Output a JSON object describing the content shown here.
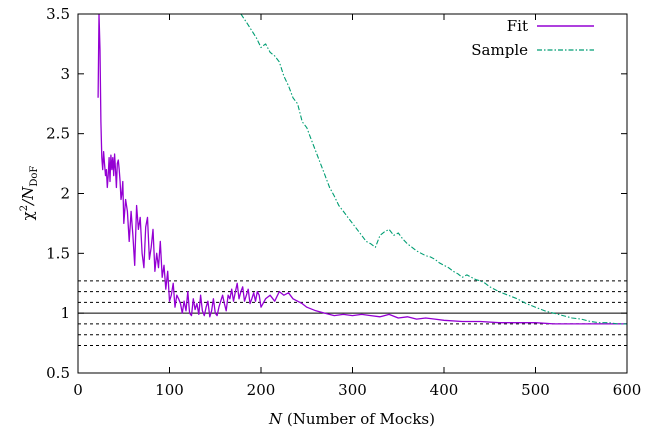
{
  "chart_data": {
    "type": "line",
    "title": "",
    "xlabel": {
      "var": "N",
      "rest": " (Number of Mocks)"
    },
    "ylabel": {
      "base": "χ",
      "sup": "2",
      "mid": "/N",
      "sub": "DoF"
    },
    "xlim": [
      0,
      600
    ],
    "ylim": [
      0.5,
      3.5
    ],
    "xticks": [
      0,
      100,
      200,
      300,
      400,
      500,
      600
    ],
    "yticks": [
      0.5,
      1,
      1.5,
      2,
      2.5,
      3,
      3.5
    ],
    "xtick_labels": [
      "0",
      "100",
      "200",
      "300",
      "400",
      "500",
      "600"
    ],
    "ytick_labels": [
      "0.5",
      "1",
      "1.5",
      "2",
      "2.5",
      "3",
      "3.5"
    ],
    "grid": false,
    "legend_position": "top-right",
    "reference_lines": {
      "solid": [
        1.0
      ],
      "dashed": [
        0.73,
        0.82,
        0.91,
        1.09,
        1.18,
        1.27
      ]
    },
    "series": [
      {
        "name": "Fit",
        "color": "#9400d3",
        "style": "solid",
        "x": [
          22,
          23,
          24,
          25,
          26,
          27,
          28,
          29,
          30,
          31,
          32,
          33,
          34,
          35,
          36,
          37,
          38,
          39,
          40,
          41,
          42,
          43,
          44,
          45,
          46,
          47,
          48,
          49,
          50,
          52,
          54,
          56,
          58,
          60,
          62,
          64,
          66,
          68,
          70,
          72,
          74,
          76,
          78,
          80,
          82,
          84,
          86,
          88,
          90,
          92,
          94,
          96,
          98,
          100,
          102,
          104,
          106,
          108,
          110,
          112,
          114,
          116,
          118,
          120,
          122,
          124,
          126,
          128,
          130,
          132,
          134,
          136,
          138,
          140,
          142,
          144,
          146,
          148,
          150,
          152,
          154,
          156,
          158,
          160,
          162,
          164,
          166,
          168,
          170,
          172,
          174,
          176,
          178,
          180,
          182,
          184,
          186,
          188,
          190,
          192,
          194,
          196,
          198,
          200,
          205,
          210,
          215,
          220,
          225,
          230,
          235,
          240,
          245,
          250,
          260,
          270,
          280,
          290,
          300,
          310,
          320,
          330,
          340,
          350,
          360,
          370,
          380,
          390,
          400,
          420,
          440,
          460,
          480,
          500,
          520,
          540,
          560,
          580,
          600
        ],
        "values": [
          2.8,
          3.5,
          3.2,
          2.6,
          2.3,
          2.2,
          2.35,
          2.25,
          2.15,
          2.2,
          2.05,
          2.15,
          2.3,
          2.1,
          2.32,
          2.2,
          2.3,
          2.15,
          2.33,
          2.2,
          2.05,
          2.25,
          2.28,
          2.2,
          2.1,
          1.95,
          2.0,
          2.1,
          1.75,
          1.95,
          1.85,
          1.6,
          1.85,
          1.65,
          1.4,
          1.9,
          1.7,
          1.8,
          1.5,
          1.38,
          1.72,
          1.8,
          1.45,
          1.55,
          1.7,
          1.35,
          1.5,
          1.38,
          1.6,
          1.3,
          1.4,
          1.2,
          1.35,
          1.1,
          1.15,
          1.25,
          1.05,
          1.15,
          1.12,
          1.08,
          1.0,
          1.1,
          1.02,
          1.18,
          1.0,
          0.98,
          1.12,
          1.03,
          1.08,
          0.99,
          1.15,
          1.02,
          0.98,
          1.05,
          1.1,
          0.97,
          1.02,
          1.12,
          1.0,
          0.98,
          1.05,
          1.1,
          1.15,
          1.08,
          1.02,
          1.15,
          1.12,
          1.2,
          1.1,
          1.18,
          1.25,
          1.12,
          1.18,
          1.22,
          1.1,
          1.15,
          1.2,
          1.08,
          1.12,
          1.17,
          1.1,
          1.18,
          1.15,
          1.05,
          1.12,
          1.15,
          1.1,
          1.18,
          1.15,
          1.17,
          1.12,
          1.1,
          1.08,
          1.05,
          1.02,
          1.0,
          0.98,
          0.99,
          0.98,
          0.99,
          0.98,
          0.97,
          0.99,
          0.96,
          0.97,
          0.95,
          0.96,
          0.95,
          0.94,
          0.93,
          0.93,
          0.92,
          0.92,
          0.92,
          0.91,
          0.91,
          0.91,
          0.91,
          0.91
        ]
      },
      {
        "name": "Sample",
        "color": "#009e73",
        "style": "dash-dot",
        "x": [
          178,
          185,
          195,
          200,
          205,
          210,
          215,
          220,
          225,
          230,
          235,
          240,
          245,
          250,
          255,
          260,
          265,
          270,
          275,
          280,
          285,
          290,
          295,
          300,
          305,
          310,
          315,
          320,
          325,
          330,
          335,
          340,
          345,
          350,
          355,
          360,
          365,
          370,
          375,
          380,
          385,
          390,
          395,
          400,
          405,
          410,
          415,
          420,
          425,
          430,
          435,
          440,
          445,
          450,
          460,
          470,
          480,
          490,
          500,
          510,
          520,
          530,
          540,
          550,
          560,
          570,
          580,
          590,
          600
        ],
        "values": [
          3.5,
          3.42,
          3.3,
          3.22,
          3.25,
          3.18,
          3.15,
          3.1,
          2.98,
          2.9,
          2.8,
          2.75,
          2.6,
          2.55,
          2.45,
          2.35,
          2.25,
          2.15,
          2.05,
          1.98,
          1.9,
          1.85,
          1.8,
          1.75,
          1.7,
          1.65,
          1.6,
          1.58,
          1.55,
          1.65,
          1.68,
          1.7,
          1.65,
          1.67,
          1.62,
          1.58,
          1.55,
          1.52,
          1.5,
          1.48,
          1.47,
          1.45,
          1.42,
          1.4,
          1.38,
          1.35,
          1.33,
          1.3,
          1.32,
          1.3,
          1.28,
          1.27,
          1.25,
          1.22,
          1.18,
          1.15,
          1.12,
          1.08,
          1.05,
          1.02,
          1.0,
          0.98,
          0.96,
          0.95,
          0.93,
          0.92,
          0.92,
          0.91,
          0.91
        ]
      }
    ]
  }
}
